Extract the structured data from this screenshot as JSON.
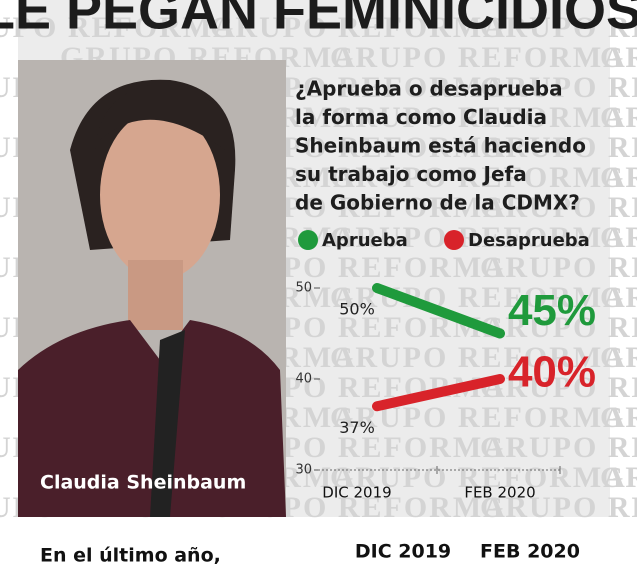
{
  "headline": "LE PEGAN FEMINICIDIOS",
  "watermark": "GRUPO REFORMA",
  "photo_caption": "Claudia Sheinbaum",
  "chart_data": {
    "type": "line",
    "title_lines": [
      "¿Aprueba o desaprueba",
      "la forma como Claudia",
      "Sheinbaum está haciendo",
      "su trabajo como Jefa",
      "de Gobierno de la CDMX?"
    ],
    "categories": [
      "DIC 2019",
      "FEB 2020"
    ],
    "series": [
      {
        "name": "Aprueba",
        "color": "#1f9a3c",
        "values": [
          50,
          45
        ],
        "value_labels": [
          "50%",
          "45%"
        ]
      },
      {
        "name": "Desaprueba",
        "color": "#d8232a",
        "values": [
          37,
          40
        ],
        "value_labels": [
          "37%",
          "40%"
        ]
      }
    ],
    "ylim": [
      30,
      50
    ],
    "yticks": [
      30,
      40,
      50
    ]
  },
  "footer": {
    "text": "En el último año,",
    "columns": [
      "DIC 2019",
      "FEB 2020"
    ]
  }
}
